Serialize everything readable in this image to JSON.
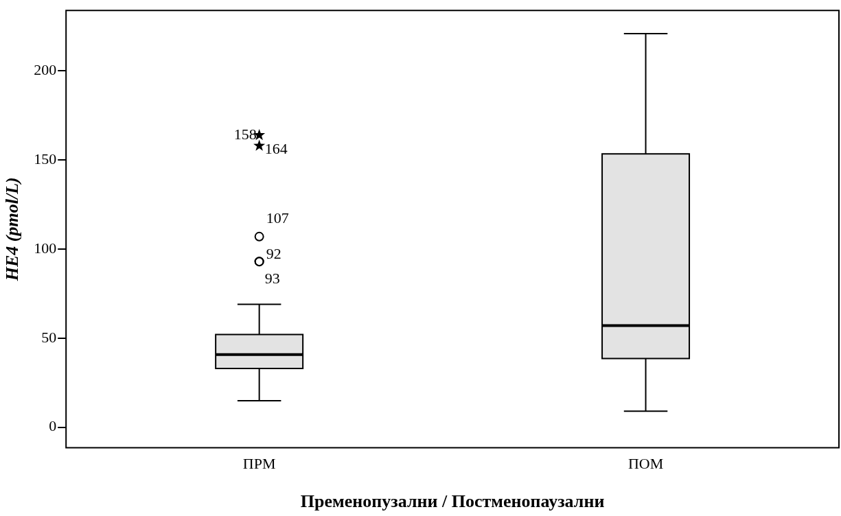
{
  "chart_data": {
    "type": "box",
    "xlabel": "Пременопузални / Постменопаузални",
    "ylabel": "HE4 (pmol/L)",
    "categories": [
      "ПРМ",
      "ПОМ"
    ],
    "color": "#e3e3e3",
    "boxes": [
      {
        "low": 14.9,
        "q1": 33,
        "median": 40.8,
        "q3": 52,
        "high": 69
      },
      {
        "low": 9,
        "q1": 38.5,
        "median": 57,
        "q3": 153.5,
        "high": 221
      }
    ],
    "series": [
      {
        "type": "scatter",
        "marker": "star",
        "color": "#000000",
        "x": [
          "ПРМ",
          "ПРМ"
        ],
        "values": [
          164,
          158
        ]
      },
      {
        "type": "scatter",
        "marker": "circle",
        "color": "#000000",
        "x": [
          "ПРМ",
          "ПРМ",
          "ПРМ"
        ],
        "values": [
          107,
          93,
          93
        ]
      }
    ],
    "ylim": [
      -11.5,
      234
    ],
    "yticks": [
      0,
      50,
      100,
      150,
      200
    ],
    "grid": false,
    "legend": false,
    "annotations": [
      {
        "text": "158",
        "x": "ПРМ",
        "y": 164
      },
      {
        "text": "164",
        "x": "ПРМ",
        "y": 158
      },
      {
        "text": "107",
        "x": "ПРМ",
        "y": 107
      },
      {
        "text": "92",
        "x": "ПРМ",
        "y": 93
      },
      {
        "text": "93",
        "x": "ПРМ",
        "y": 93
      }
    ]
  }
}
